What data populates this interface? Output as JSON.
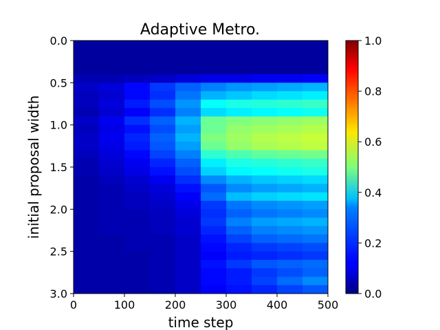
{
  "chart_data": {
    "type": "heatmap",
    "title": "Adaptive Metro.",
    "xlabel": "time step",
    "ylabel": "initial proposal width",
    "xlim": [
      0,
      500
    ],
    "ylim": [
      3.0,
      0.0
    ],
    "x_ticks": [
      "0",
      "100",
      "200",
      "300",
      "400",
      "500"
    ],
    "y_ticks": [
      "0.0",
      "0.5",
      "1.0",
      "1.5",
      "2.0",
      "2.5",
      "3.0"
    ],
    "colormap": "jet",
    "colorbar": {
      "range": [
        0.0,
        1.0
      ],
      "ticks": [
        "0.0",
        "0.2",
        "0.4",
        "0.6",
        "0.8",
        "1.0"
      ]
    },
    "x_edges": [
      0,
      50,
      100,
      150,
      200,
      250,
      300,
      350,
      400,
      450,
      500
    ],
    "y_edges": [
      0.0,
      0.4,
      0.5,
      0.6,
      0.7,
      0.8,
      0.9,
      1.0,
      1.1,
      1.2,
      1.3,
      1.4,
      1.5,
      1.6,
      1.7,
      1.8,
      1.9,
      2.0,
      2.1,
      2.2,
      2.3,
      2.4,
      2.5,
      2.6,
      2.7,
      2.8,
      2.9,
      3.0
    ],
    "values": [
      [
        0.03,
        0.03,
        0.03,
        0.03,
        0.03,
        0.03,
        0.03,
        0.03,
        0.03,
        0.03
      ],
      [
        0.05,
        0.05,
        0.06,
        0.07,
        0.09,
        0.1,
        0.1,
        0.11,
        0.11,
        0.12
      ],
      [
        0.07,
        0.09,
        0.13,
        0.18,
        0.22,
        0.25,
        0.27,
        0.28,
        0.29,
        0.3
      ],
      [
        0.06,
        0.08,
        0.13,
        0.17,
        0.24,
        0.3,
        0.32,
        0.34,
        0.35,
        0.36
      ],
      [
        0.06,
        0.09,
        0.15,
        0.2,
        0.27,
        0.38,
        0.4,
        0.41,
        0.42,
        0.43
      ],
      [
        0.05,
        0.08,
        0.12,
        0.17,
        0.25,
        0.34,
        0.36,
        0.37,
        0.38,
        0.39
      ],
      [
        0.07,
        0.11,
        0.17,
        0.22,
        0.3,
        0.48,
        0.5,
        0.51,
        0.52,
        0.53
      ],
      [
        0.06,
        0.1,
        0.14,
        0.2,
        0.28,
        0.48,
        0.52,
        0.53,
        0.54,
        0.55
      ],
      [
        0.07,
        0.11,
        0.16,
        0.22,
        0.3,
        0.5,
        0.53,
        0.55,
        0.56,
        0.57
      ],
      [
        0.07,
        0.1,
        0.15,
        0.21,
        0.28,
        0.48,
        0.52,
        0.54,
        0.55,
        0.56
      ],
      [
        0.06,
        0.09,
        0.13,
        0.19,
        0.25,
        0.42,
        0.45,
        0.47,
        0.48,
        0.49
      ],
      [
        0.05,
        0.08,
        0.11,
        0.16,
        0.22,
        0.36,
        0.4,
        0.41,
        0.42,
        0.43
      ],
      [
        0.05,
        0.07,
        0.1,
        0.14,
        0.2,
        0.33,
        0.37,
        0.38,
        0.39,
        0.4
      ],
      [
        0.04,
        0.06,
        0.08,
        0.11,
        0.17,
        0.26,
        0.3,
        0.32,
        0.33,
        0.34
      ],
      [
        0.04,
        0.05,
        0.07,
        0.09,
        0.14,
        0.21,
        0.26,
        0.28,
        0.29,
        0.3
      ],
      [
        0.04,
        0.05,
        0.06,
        0.08,
        0.12,
        0.23,
        0.31,
        0.33,
        0.34,
        0.35
      ],
      [
        0.04,
        0.05,
        0.06,
        0.07,
        0.1,
        0.18,
        0.24,
        0.26,
        0.27,
        0.28
      ],
      [
        0.04,
        0.05,
        0.05,
        0.06,
        0.09,
        0.17,
        0.22,
        0.24,
        0.25,
        0.26
      ],
      [
        0.04,
        0.05,
        0.05,
        0.06,
        0.08,
        0.18,
        0.25,
        0.28,
        0.29,
        0.3
      ],
      [
        0.04,
        0.05,
        0.05,
        0.06,
        0.08,
        0.16,
        0.22,
        0.25,
        0.26,
        0.27
      ],
      [
        0.04,
        0.04,
        0.05,
        0.05,
        0.07,
        0.14,
        0.19,
        0.22,
        0.23,
        0.24
      ],
      [
        0.04,
        0.04,
        0.05,
        0.05,
        0.07,
        0.13,
        0.16,
        0.18,
        0.19,
        0.2
      ],
      [
        0.04,
        0.04,
        0.04,
        0.05,
        0.07,
        0.12,
        0.15,
        0.16,
        0.17,
        0.18
      ],
      [
        0.04,
        0.04,
        0.04,
        0.05,
        0.07,
        0.14,
        0.18,
        0.21,
        0.22,
        0.23
      ],
      [
        0.04,
        0.04,
        0.04,
        0.05,
        0.07,
        0.13,
        0.15,
        0.18,
        0.2,
        0.22
      ],
      [
        0.04,
        0.04,
        0.04,
        0.05,
        0.07,
        0.13,
        0.15,
        0.19,
        0.23,
        0.26
      ],
      [
        0.04,
        0.04,
        0.04,
        0.05,
        0.07,
        0.12,
        0.14,
        0.16,
        0.19,
        0.21
      ]
    ]
  }
}
